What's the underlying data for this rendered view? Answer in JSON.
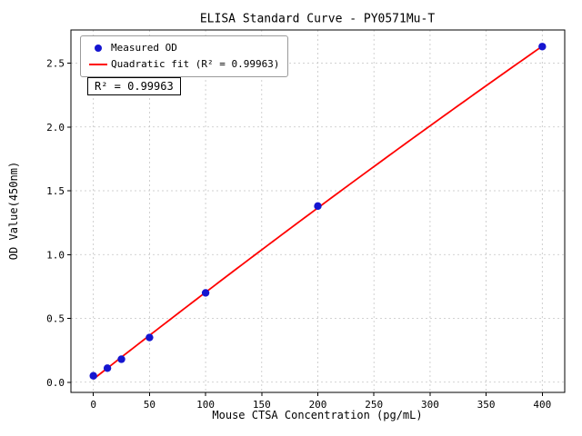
{
  "chart_data": {
    "type": "scatter",
    "title": "ELISA Standard Curve - PY0571Mu-T",
    "xlabel": "Mouse CTSA Concentration (pg/mL)",
    "ylabel": "OD Value(450nm)",
    "xlim": [
      -20,
      420
    ],
    "ylim": [
      -0.08,
      2.76
    ],
    "xticks": [
      0,
      50,
      100,
      150,
      200,
      250,
      300,
      350,
      400
    ],
    "yticks": [
      0,
      0.5,
      1,
      1.5,
      2,
      2.5
    ],
    "grid": true,
    "grid_style": "dashed",
    "legend_position": "upper left",
    "series": [
      {
        "name": "Measured OD",
        "plot_type": "scatter",
        "color": "#1515d0",
        "x": [
          0,
          12.5,
          25,
          50,
          100,
          200,
          400
        ],
        "y": [
          0.05,
          0.11,
          0.18,
          0.35,
          0.7,
          1.38,
          2.63
        ]
      },
      {
        "name": "Quadratic fit (R² = 0.99963)",
        "plot_type": "line",
        "color": "#ff0000",
        "fit": "quadratic",
        "fit_source": "Measured OD"
      }
    ],
    "annotations": [
      {
        "text": "R² = 0.99963",
        "position": "below-legend"
      }
    ],
    "r_squared": 0.99963
  }
}
